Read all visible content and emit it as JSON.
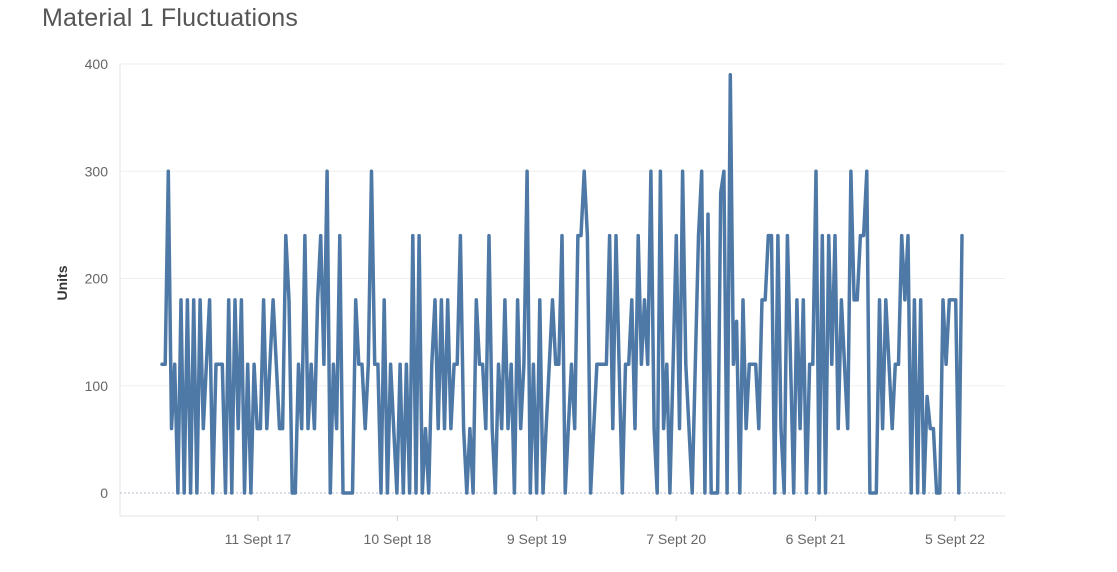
{
  "chart_data": {
    "type": "line",
    "title": "Material 1 Fluctuations",
    "ylabel": "Units",
    "xlabel": "",
    "ylim": [
      0,
      400
    ],
    "y_ticks": [
      0,
      100,
      200,
      300,
      400
    ],
    "x_tick_labels": [
      "11 Sept 17",
      "10 Sept 18",
      "9 Sept 19",
      "7 Sept 20",
      "6 Sept 21",
      "5 Sept 22"
    ],
    "grid": true,
    "legend": "none",
    "series": [
      {
        "color": "#4e79a7",
        "values": [
          120,
          120,
          300,
          60,
          120,
          0,
          180,
          0,
          180,
          0,
          180,
          0,
          180,
          60,
          120,
          180,
          0,
          120,
          120,
          120,
          0,
          180,
          0,
          180,
          60,
          180,
          0,
          120,
          0,
          120,
          60,
          60,
          180,
          60,
          120,
          180,
          120,
          60,
          60,
          240,
          180,
          0,
          0,
          120,
          60,
          240,
          60,
          120,
          60,
          180,
          240,
          120,
          300,
          0,
          120,
          60,
          240,
          0,
          0,
          0,
          0,
          180,
          120,
          120,
          60,
          120,
          300,
          120,
          120,
          0,
          180,
          0,
          120,
          60,
          0,
          120,
          0,
          120,
          0,
          240,
          0,
          240,
          0,
          60,
          0,
          120,
          180,
          60,
          180,
          60,
          180,
          60,
          120,
          120,
          240,
          60,
          0,
          60,
          0,
          180,
          120,
          120,
          60,
          240,
          60,
          0,
          120,
          60,
          180,
          60,
          120,
          0,
          180,
          60,
          120,
          300,
          0,
          120,
          0,
          180,
          0,
          60,
          120,
          180,
          120,
          120,
          240,
          0,
          60,
          120,
          60,
          240,
          240,
          300,
          240,
          0,
          60,
          120,
          120,
          120,
          120,
          240,
          60,
          240,
          120,
          0,
          120,
          120,
          180,
          60,
          240,
          120,
          180,
          120,
          300,
          60,
          0,
          300,
          60,
          120,
          0,
          120,
          240,
          60,
          300,
          120,
          60,
          0,
          120,
          240,
          300,
          0,
          260,
          0,
          0,
          0,
          280,
          300,
          0,
          390,
          120,
          160,
          0,
          180,
          60,
          120,
          120,
          120,
          60,
          180,
          180,
          240,
          240,
          0,
          240,
          60,
          0,
          240,
          120,
          0,
          180,
          60,
          180,
          0,
          120,
          120,
          300,
          0,
          240,
          0,
          240,
          120,
          240,
          60,
          180,
          120,
          60,
          300,
          180,
          180,
          240,
          240,
          300,
          0,
          0,
          0,
          180,
          60,
          180,
          120,
          60,
          120,
          120,
          240,
          180,
          240,
          0,
          180,
          0,
          180,
          0,
          90,
          60,
          60,
          0,
          0,
          180,
          120,
          180,
          180,
          180,
          0,
          240
        ]
      }
    ]
  }
}
